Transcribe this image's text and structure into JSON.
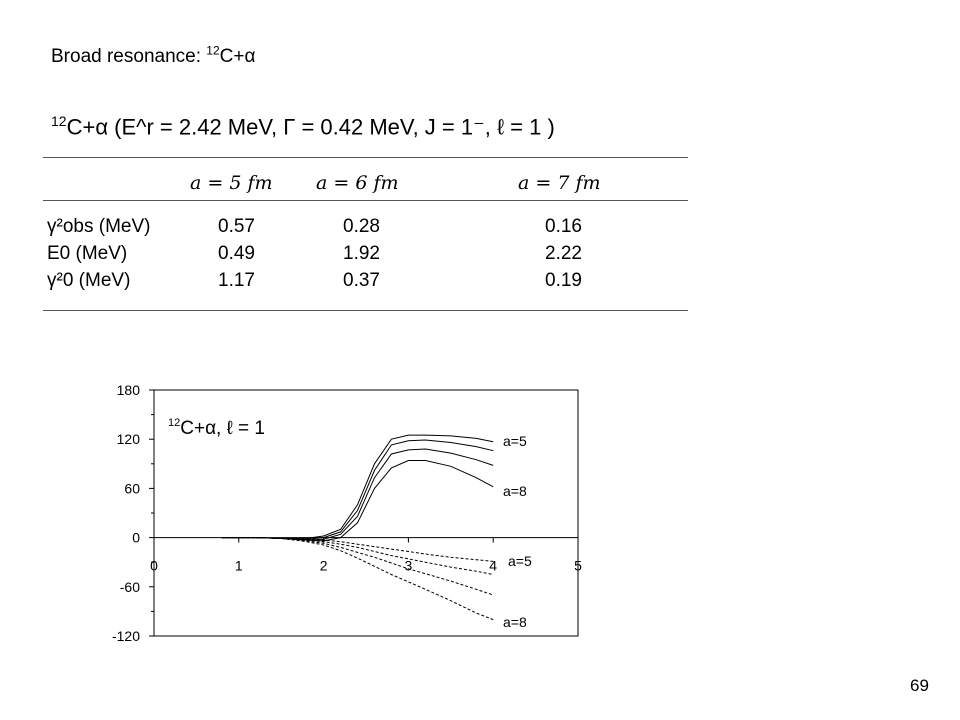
{
  "slide": {
    "title_prefix": "Broad resonance: ",
    "title_sup": "12",
    "title_suffix": "C+α",
    "page_number": "69"
  },
  "table": {
    "caption_sup": "12",
    "caption": "C+α (E^r = 2.42 MeV, Γ = 0.42 MeV, J = 1⁻, ℓ = 1 )",
    "columns": [
      "a = 5 fm",
      "a = 6 fm",
      "a = 7 fm"
    ],
    "rows": [
      {
        "label": "γ²obs (MeV)",
        "values": [
          "0.57",
          "0.28",
          "0.16"
        ]
      },
      {
        "label": "E0 (MeV)",
        "values": [
          "0.49",
          "1.92",
          "2.22"
        ]
      },
      {
        "label": "γ²0 (MeV)",
        "values": [
          "1.17",
          "0.37",
          "0.19"
        ]
      }
    ]
  },
  "chart_data": {
    "type": "line",
    "title": "",
    "xlabel": "",
    "ylabel": "",
    "xlim": [
      0,
      5
    ],
    "ylim": [
      -120,
      180
    ],
    "xticks": [
      0,
      1,
      2,
      3,
      4,
      5
    ],
    "yticks": [
      -120,
      -60,
      0,
      60,
      120,
      180
    ],
    "annotation_sup": "12",
    "annotation": "C+α, ℓ = 1",
    "labels": {
      "top_upper": "a=5",
      "top_lower": "a=8",
      "bottom_upper": "a=5",
      "bottom_lower": "a=8"
    },
    "x": [
      0.8,
      1.2,
      1.5,
      1.8,
      2.0,
      2.2,
      2.4,
      2.6,
      2.8,
      3.0,
      3.2,
      3.5,
      3.8,
      4.0
    ],
    "series": [
      {
        "style": "solid",
        "values": [
          0,
          0,
          -1,
          -1,
          2,
          10,
          40,
          90,
          120,
          125,
          125,
          124,
          121,
          117
        ]
      },
      {
        "style": "solid",
        "values": [
          0,
          0,
          -1,
          -2,
          0,
          7,
          33,
          82,
          113,
          118,
          119,
          116,
          111,
          106
        ]
      },
      {
        "style": "solid",
        "values": [
          0,
          0,
          -1,
          -3,
          -2,
          4,
          26,
          73,
          102,
          107,
          108,
          103,
          95,
          88
        ]
      },
      {
        "style": "solid",
        "values": [
          0,
          0,
          -1,
          -3,
          -4,
          0,
          18,
          60,
          85,
          94,
          94,
          87,
          73,
          62
        ]
      },
      {
        "style": "dashed",
        "values": [
          0,
          0,
          -1,
          -2,
          -3,
          -5,
          -8,
          -11,
          -14,
          -17,
          -20,
          -24,
          -27,
          -29
        ]
      },
      {
        "style": "dashed",
        "values": [
          0,
          0,
          -1,
          -3,
          -5,
          -8,
          -12,
          -17,
          -22,
          -26,
          -30,
          -36,
          -41,
          -45
        ]
      },
      {
        "style": "dashed",
        "values": [
          0,
          0,
          -1,
          -4,
          -7,
          -12,
          -18,
          -24,
          -31,
          -38,
          -44,
          -53,
          -63,
          -70
        ]
      },
      {
        "style": "dashed",
        "values": [
          0,
          0,
          -1,
          -5,
          -9,
          -16,
          -25,
          -35,
          -45,
          -54,
          -63,
          -77,
          -92,
          -100
        ]
      }
    ]
  }
}
